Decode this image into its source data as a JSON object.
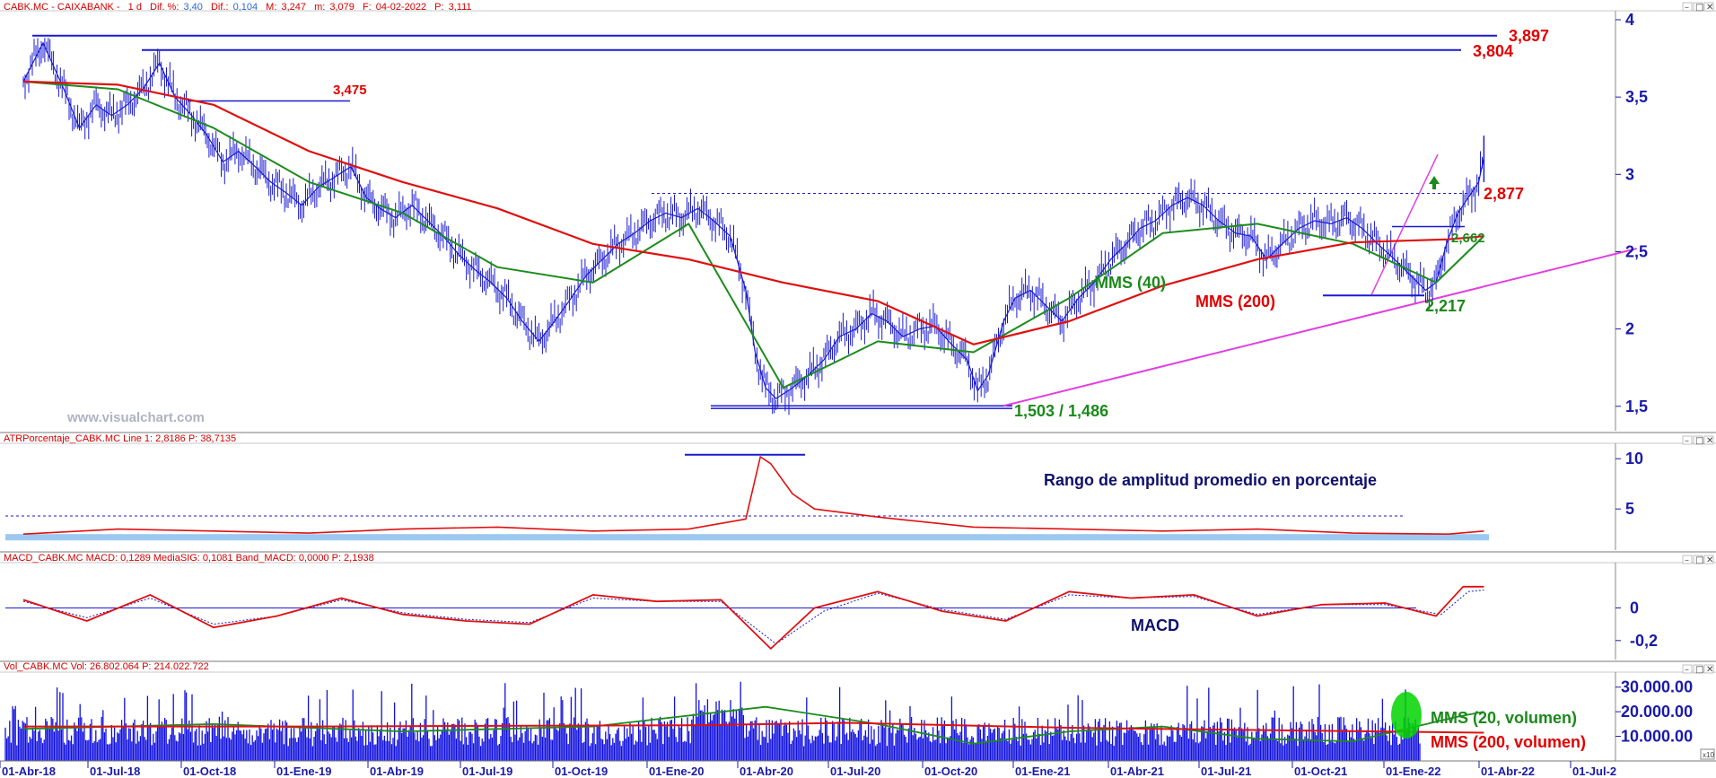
{
  "window": {
    "price_header": {
      "name": "CABK.MC - CAIXABANK -",
      "timeframe": "1 d",
      "dif_pct_label": "Dif. %:",
      "dif_pct_value": "3,40",
      "dif_label": "Dif.:",
      "dif_value": "0,104",
      "max_label": "M:",
      "max_value": "3,247",
      "min_label": "m:",
      "min_value": "3,079",
      "date_label": "F:",
      "date_value": "04-02-2022",
      "price_label": "P:",
      "price_value": "3,111"
    },
    "atr_header": "ATRPorcentaje_CABK.MC Line 1: 2,8186 P: 38,7135",
    "macd_header": "MACD_CABK.MC MACD: 0,1289 MediaSIG: 0,1081 Band_MACD: 0,0000 P: 2,1938",
    "vol_header": "Vol_CABK.MC Vol: 26.802.064 P: 214.022.722",
    "watermark": "www.visualchart.com",
    "scale_badge": "x10",
    "window_controls": [
      "–",
      "□",
      "✕"
    ]
  },
  "annotations": {
    "r_3897": "3,897",
    "r_3804": "3,804",
    "r_3475": "3,475",
    "r_2877": "2,877",
    "s_2662": "2,662",
    "s_2217": "2,217",
    "s_1503": "1,503 / 1,486",
    "mms40": "MMS (40)",
    "mms200": "MMS (200)",
    "atr_title": "Rango de amplitud promedio en porcentaje",
    "macd_title": "MACD",
    "vol_mms20": "MMS (20, volumen)",
    "vol_mms200": "MMS (200, volumen)"
  },
  "colors": {
    "price": "#1a1ad0",
    "mms40": "#1c8c1c",
    "mms200": "#e01010",
    "trendline": "#e040e0",
    "level": "#1a1ad0",
    "volume": "#1010e0",
    "atr_band": "#9cc8ef",
    "axis_text": "#1a1aa8",
    "annotation_red": "#e00000",
    "annotation_green": "#1a8a1a"
  },
  "chart_data": [
    {
      "type": "line",
      "title": "CABK.MC - CAIXABANK - 1 d",
      "x_ticks": [
        "01-Abr-18",
        "01-Jul-18",
        "01-Oct-18",
        "01-Ene-19",
        "01-Abr-19",
        "01-Jul-19",
        "01-Oct-19",
        "01-Ene-20",
        "01-Abr-20",
        "01-Jul-20",
        "01-Oct-20",
        "01-Ene-21",
        "01-Abr-21",
        "01-Jul-21",
        "01-Oct-21",
        "01-Ene-22",
        "01-Abr-22",
        "01-Jul-2"
      ],
      "y_ticks": [
        "4",
        "3,5",
        "3",
        "2,5",
        "2",
        "1,5"
      ],
      "ylim": [
        1.4,
        4.0
      ],
      "series": [
        {
          "name": "",
          "role": "price",
          "x": [
            "2018-04-01",
            "2018-04-20",
            "2018-05-10",
            "2018-05-25",
            "2018-06-10",
            "2018-06-25",
            "2018-07-10",
            "2018-07-25",
            "2018-08-10",
            "2018-08-25",
            "2018-09-10",
            "2018-09-25",
            "2018-10-10",
            "2018-10-25",
            "2018-11-10",
            "2018-11-25",
            "2018-12-10",
            "2018-12-25",
            "2019-01-10",
            "2019-01-25",
            "2019-02-10",
            "2019-02-25",
            "2019-03-10",
            "2019-03-25",
            "2019-04-10",
            "2019-04-25",
            "2019-05-10",
            "2019-05-25",
            "2019-06-10",
            "2019-06-25",
            "2019-07-10",
            "2019-07-25",
            "2019-08-10",
            "2019-08-25",
            "2019-09-10",
            "2019-09-25",
            "2019-10-10",
            "2019-10-25",
            "2019-11-10",
            "2019-11-25",
            "2019-12-10",
            "2019-12-25",
            "2020-01-10",
            "2020-01-25",
            "2020-02-10",
            "2020-02-25",
            "2020-03-05",
            "2020-03-15",
            "2020-03-25",
            "2020-04-10",
            "2020-04-25",
            "2020-05-10",
            "2020-05-25",
            "2020-06-10",
            "2020-06-25",
            "2020-07-10",
            "2020-07-25",
            "2020-08-10",
            "2020-08-25",
            "2020-09-10",
            "2020-09-25",
            "2020-10-05",
            "2020-10-15",
            "2020-10-30",
            "2020-11-10",
            "2020-11-25",
            "2020-12-10",
            "2020-12-25",
            "2021-01-10",
            "2021-01-25",
            "2021-02-10",
            "2021-02-25",
            "2021-03-10",
            "2021-03-25",
            "2021-04-10",
            "2021-04-25",
            "2021-05-10",
            "2021-05-25",
            "2021-06-10",
            "2021-06-25",
            "2021-07-10",
            "2021-07-25",
            "2021-08-10",
            "2021-08-25",
            "2021-09-10",
            "2021-09-25",
            "2021-10-10",
            "2021-10-25",
            "2021-11-10",
            "2021-11-25",
            "2021-12-10",
            "2021-12-20",
            "2021-12-30",
            "2022-01-10",
            "2022-01-20",
            "2022-01-30",
            "2022-02-04"
          ],
          "values": [
            3.6,
            3.85,
            3.55,
            3.3,
            3.45,
            3.38,
            3.45,
            3.55,
            3.72,
            3.5,
            3.38,
            3.25,
            3.08,
            3.15,
            3.05,
            2.95,
            2.88,
            2.8,
            2.92,
            2.98,
            3.05,
            2.85,
            2.78,
            2.72,
            2.8,
            2.7,
            2.6,
            2.48,
            2.38,
            2.3,
            2.2,
            2.05,
            1.92,
            2.05,
            2.2,
            2.35,
            2.45,
            2.55,
            2.62,
            2.7,
            2.75,
            2.72,
            2.78,
            2.7,
            2.6,
            2.25,
            1.85,
            1.62,
            1.55,
            1.62,
            1.7,
            1.8,
            1.95,
            2.0,
            2.1,
            2.05,
            1.95,
            2.0,
            2.02,
            1.9,
            1.8,
            1.6,
            1.7,
            2.05,
            2.2,
            2.25,
            2.15,
            2.05,
            2.2,
            2.3,
            2.45,
            2.55,
            2.65,
            2.7,
            2.8,
            2.85,
            2.8,
            2.7,
            2.62,
            2.6,
            2.45,
            2.55,
            2.65,
            2.7,
            2.68,
            2.72,
            2.65,
            2.55,
            2.45,
            2.35,
            2.25,
            2.3,
            2.55,
            2.75,
            2.85,
            2.95,
            3.11
          ]
        },
        {
          "name": "MMS (40)",
          "role": "sma40",
          "x": [
            "2018-04-01",
            "2018-07-01",
            "2018-10-01",
            "2019-01-01",
            "2019-04-01",
            "2019-07-01",
            "2019-10-01",
            "2020-01-01",
            "2020-04-01",
            "2020-07-01",
            "2020-10-01",
            "2021-01-01",
            "2021-04-01",
            "2021-07-01",
            "2021-10-01",
            "2021-12-20",
            "2022-02-04"
          ],
          "values": [
            3.6,
            3.55,
            3.3,
            2.95,
            2.75,
            2.4,
            2.3,
            2.68,
            1.62,
            1.92,
            1.85,
            2.2,
            2.62,
            2.68,
            2.55,
            2.3,
            2.6
          ]
        },
        {
          "name": "MMS (200)",
          "role": "sma200",
          "x": [
            "2018-04-01",
            "2018-07-01",
            "2018-10-01",
            "2019-01-01",
            "2019-04-01",
            "2019-07-01",
            "2019-10-01",
            "2020-01-01",
            "2020-04-01",
            "2020-07-01",
            "2020-10-01",
            "2021-01-01",
            "2021-04-01",
            "2021-07-01",
            "2021-10-01",
            "2022-01-01",
            "2022-02-04"
          ],
          "values": [
            3.6,
            3.58,
            3.45,
            3.15,
            2.95,
            2.78,
            2.55,
            2.45,
            2.3,
            2.18,
            1.9,
            2.05,
            2.28,
            2.45,
            2.56,
            2.58,
            2.6
          ]
        }
      ],
      "levels": [
        3.897,
        3.804,
        3.475,
        2.877,
        2.662,
        2.217,
        1.503,
        1.486
      ],
      "trendline": {
        "from": [
          "2020-10-30",
          1.503
        ],
        "to": [
          "2022-07-01",
          2.52
        ]
      }
    },
    {
      "type": "line",
      "ylim": [
        1,
        11
      ],
      "y_ticks": [
        "10",
        "5"
      ],
      "series": [
        {
          "name": "",
          "role": "atr_pct",
          "x": [
            "2018-04-01",
            "2018-07-01",
            "2018-10-01",
            "2019-01-01",
            "2019-04-01",
            "2019-07-01",
            "2019-10-01",
            "2020-01-01",
            "2020-02-25",
            "2020-03-10",
            "2020-03-20",
            "2020-04-10",
            "2020-05-01",
            "2020-07-01",
            "2020-10-01",
            "2021-01-01",
            "2021-04-01",
            "2021-07-01",
            "2021-10-01",
            "2022-01-01",
            "2022-02-04"
          ],
          "values": [
            2.5,
            3.0,
            2.8,
            2.6,
            3.0,
            3.2,
            2.8,
            3.0,
            4.0,
            10.2,
            9.5,
            6.5,
            5.0,
            4.2,
            3.2,
            3.0,
            2.8,
            3.0,
            2.6,
            2.5,
            2.8
          ]
        }
      ],
      "levels": [
        4.3,
        10.4
      ]
    },
    {
      "type": "line",
      "ylim": [
        -0.3,
        0.25
      ],
      "y_ticks": [
        "0",
        "-0,2"
      ],
      "series": [
        {
          "name": "",
          "role": "macd",
          "x": [
            "2018-04-01",
            "2018-06-01",
            "2018-08-01",
            "2018-10-01",
            "2018-12-01",
            "2019-02-01",
            "2019-04-01",
            "2019-06-01",
            "2019-08-01",
            "2019-10-01",
            "2019-12-01",
            "2020-02-01",
            "2020-03-20",
            "2020-05-01",
            "2020-07-01",
            "2020-09-01",
            "2020-11-01",
            "2021-01-01",
            "2021-03-01",
            "2021-05-01",
            "2021-07-01",
            "2021-09-01",
            "2021-11-01",
            "2021-12-20",
            "2022-01-15",
            "2022-02-04"
          ],
          "values": [
            0.05,
            -0.08,
            0.08,
            -0.12,
            -0.05,
            0.06,
            -0.04,
            -0.08,
            -0.1,
            0.08,
            0.04,
            0.05,
            -0.25,
            0.0,
            0.1,
            -0.02,
            -0.08,
            0.1,
            0.06,
            0.08,
            -0.05,
            0.02,
            0.03,
            -0.05,
            0.13,
            0.13
          ]
        },
        {
          "name": "",
          "role": "signal",
          "x": [
            "2018-04-01",
            "2018-06-01",
            "2018-08-01",
            "2018-10-01",
            "2018-12-01",
            "2019-02-01",
            "2019-04-01",
            "2019-06-01",
            "2019-08-01",
            "2019-10-01",
            "2019-12-01",
            "2020-02-01",
            "2020-03-25",
            "2020-05-10",
            "2020-07-01",
            "2020-09-01",
            "2020-11-01",
            "2021-01-01",
            "2021-03-01",
            "2021-05-01",
            "2021-07-01",
            "2021-09-01",
            "2021-11-01",
            "2021-12-25",
            "2022-01-20",
            "2022-02-04"
          ],
          "values": [
            0.04,
            -0.06,
            0.06,
            -0.1,
            -0.05,
            0.05,
            -0.03,
            -0.07,
            -0.09,
            0.06,
            0.04,
            0.04,
            -0.22,
            -0.02,
            0.09,
            -0.01,
            -0.07,
            0.08,
            0.06,
            0.07,
            -0.04,
            0.02,
            0.02,
            -0.04,
            0.1,
            0.11
          ]
        }
      ]
    },
    {
      "type": "bar",
      "ylim": [
        0,
        35000000
      ],
      "y_ticks": [
        "30.000.00",
        "20.000.00",
        "10.000.00"
      ],
      "series": [
        {
          "name": "MMS (20, volumen)",
          "role": "vol_sma20",
          "x": [
            "2018-04-01",
            "2018-10-01",
            "2019-04-01",
            "2019-10-01",
            "2020-03-15",
            "2020-07-01",
            "2020-10-01",
            "2021-01-01",
            "2021-04-01",
            "2021-07-01",
            "2021-10-01",
            "2022-01-10",
            "2022-02-04"
          ],
          "values": [
            13000000,
            15000000,
            12000000,
            14000000,
            22000000,
            15000000,
            7000000,
            12000000,
            14000000,
            9000000,
            8000000,
            18000000,
            20000000
          ]
        },
        {
          "name": "MMS (200, volumen)",
          "role": "vol_sma200",
          "x": [
            "2018-04-01",
            "2019-01-01",
            "2020-01-01",
            "2020-06-01",
            "2021-01-01",
            "2022-02-04"
          ],
          "values": [
            14000000,
            14000000,
            14500000,
            15500000,
            13500000,
            11500000
          ]
        }
      ]
    }
  ]
}
